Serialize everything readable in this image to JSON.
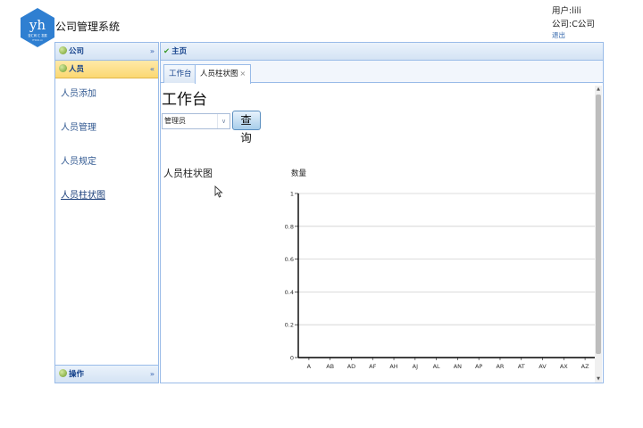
{
  "header": {
    "logo_text": "yh",
    "logo_subtext": "壹汇网 汇 发展",
    "logo_small": "YHOO.cn",
    "app_title": "公司管理系统",
    "user_label": "用户:lili",
    "company_label": "公司:C公司",
    "logout_label": "退出"
  },
  "sidebar": {
    "sections": [
      {
        "label": "公司",
        "chevron": "»"
      },
      {
        "label": "人员",
        "chevron": "«"
      },
      {
        "label": "操作",
        "chevron": "»"
      }
    ],
    "items": [
      {
        "label": "人员添加"
      },
      {
        "label": "人员管理"
      },
      {
        "label": "人员规定"
      },
      {
        "label": "人员柱状图"
      }
    ],
    "current_item": "人员柱状图"
  },
  "main": {
    "header_label": "主页",
    "tabs": [
      {
        "label": "工作台",
        "active": false
      },
      {
        "label": "人员柱状图",
        "active": true,
        "close": "×"
      }
    ],
    "workspace_title": "工作台",
    "role_select": {
      "value": "管理员"
    },
    "query_button": "查询",
    "chart_label": "人员柱状图"
  },
  "colors": {
    "accent": "#99bbe8",
    "active_section": "#fbd872",
    "link": "#335a92"
  },
  "chart_data": {
    "type": "bar",
    "title": "",
    "ylabel": "数量",
    "xlabel": "",
    "categories": [
      "A",
      "AB",
      "AD",
      "AF",
      "AH",
      "AJ",
      "AL",
      "AN",
      "AP",
      "AR",
      "AT",
      "AV",
      "AX",
      "AZ"
    ],
    "values": [
      0,
      0,
      0,
      0,
      0,
      0,
      0,
      0,
      0,
      0,
      0,
      0,
      0,
      0
    ],
    "ylim": [
      0,
      1
    ],
    "yticks": [
      "0",
      "0.2",
      "0.4",
      "0.6",
      "0.8",
      "1"
    ],
    "grid": true
  }
}
